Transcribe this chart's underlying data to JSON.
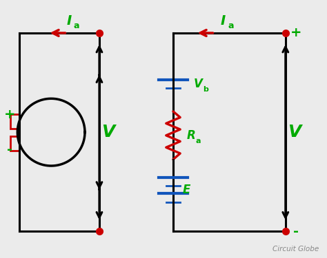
{
  "bg_color": "#ebebeb",
  "line_color": "#000000",
  "green_color": "#00aa00",
  "red_color": "#cc0000",
  "blue_color": "#1155bb",
  "watermark": "Circuit Globe",
  "label_V": "V",
  "label_Ia": "I",
  "label_Ia_sub": "a",
  "label_Vb": "V",
  "label_Vb_sub": "b",
  "label_Ra": "R",
  "label_Ra_sub": "a",
  "label_E": "E",
  "label_plus": "+",
  "label_minus": "-"
}
